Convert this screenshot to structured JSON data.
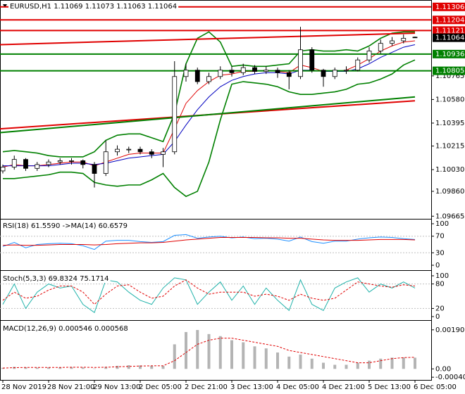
{
  "chart_data": [
    {
      "type": "candlestick",
      "title": "EURUSD,H1  1.11069 1.11073 1.11063 1.11064",
      "categories": [
        "28 Nov 2019",
        null,
        null,
        null,
        "28 Nov 21:00",
        null,
        null,
        null,
        "29 Nov 13:00",
        null,
        null,
        null,
        "2 Dec 05:00",
        null,
        null,
        null,
        "2 Dec 21:00",
        null,
        null,
        null,
        "3 Dec 13:00",
        null,
        null,
        null,
        "4 Dec 05:00",
        null,
        null,
        null,
        "4 Dec 21:00",
        null,
        null,
        null,
        "5 Dec 13:00",
        null,
        null,
        null,
        "6 Dec 05:00"
      ],
      "open": [
        1.1002,
        1.1005,
        1.1011,
        1.1004,
        1.1007,
        1.1009,
        1.101,
        1.101,
        1.1007,
        1.1,
        1.1017,
        1.1019,
        1.1019,
        1.1017,
        1.1015,
        1.1017,
        1.1076,
        1.1081,
        1.1072,
        1.1076,
        1.1081,
        1.1079,
        1.1083,
        1.108,
        1.1081,
        1.1079,
        1.1076,
        1.1097,
        1.1081,
        1.1076,
        1.1081,
        1.1081,
        1.1089,
        1.1096,
        1.1102,
        1.1104,
        1.11069
      ],
      "high": [
        1.1007,
        1.1014,
        1.1012,
        1.1009,
        1.1011,
        1.1012,
        1.1012,
        1.1011,
        1.1009,
        1.1026,
        1.1022,
        1.1021,
        1.1021,
        1.1019,
        1.102,
        1.1088,
        1.1086,
        1.1083,
        1.1079,
        1.1084,
        1.1084,
        1.1086,
        1.1085,
        1.1084,
        1.1083,
        1.1081,
        1.1115,
        1.1099,
        1.1082,
        1.1083,
        1.1084,
        1.1091,
        1.1099,
        1.1105,
        1.1107,
        1.1109,
        1.11073
      ],
      "low": [
        1.1,
        1.1003,
        1.1002,
        1.1002,
        1.1005,
        1.1007,
        1.1007,
        1.1004,
        1.0989,
        1.0998,
        1.1014,
        1.1016,
        1.1015,
        1.1012,
        1.1005,
        1.1015,
        1.1072,
        1.107,
        1.107,
        1.1074,
        1.1076,
        1.1077,
        1.1078,
        1.1078,
        1.1075,
        1.1066,
        1.1074,
        1.1079,
        1.1068,
        1.1074,
        1.1078,
        1.108,
        1.1087,
        1.1094,
        1.11,
        1.1102,
        1.11063
      ],
      "close": [
        1.1005,
        1.1011,
        1.1004,
        1.1007,
        1.1009,
        1.101,
        1.101,
        1.1007,
        1.1,
        1.1017,
        1.1019,
        1.1019,
        1.1017,
        1.1015,
        1.1017,
        1.1076,
        1.1081,
        1.1072,
        1.1076,
        1.1081,
        1.1079,
        1.1083,
        1.108,
        1.1081,
        1.1079,
        1.1076,
        1.1097,
        1.1081,
        1.1076,
        1.1081,
        1.1081,
        1.1089,
        1.1096,
        1.1102,
        1.1104,
        1.1106,
        1.11064
      ],
      "up_color": "#ffffff",
      "down_color": "#000000",
      "overlays": [
        {
          "color": "#008000",
          "values": [
            1.1017,
            1.1018,
            1.1017,
            1.1016,
            1.1014,
            1.1013,
            1.1013,
            1.1013,
            1.1017,
            1.1026,
            1.103,
            1.1031,
            1.1031,
            1.1028,
            1.1025,
            1.1047,
            1.1086,
            1.1106,
            1.1111,
            1.1103,
            1.1084,
            1.1085,
            1.1084,
            1.1084,
            1.1085,
            1.1086,
            1.1096,
            1.1097,
            1.1096,
            1.1096,
            1.1097,
            1.1096,
            1.11,
            1.1106,
            1.111,
            1.1111,
            1.1111
          ]
        },
        {
          "color": "#008000",
          "values": [
            1.0996,
            1.0996,
            1.0997,
            1.0998,
            1.0999,
            1.1001,
            1.1001,
            1.1,
            1.0993,
            1.0991,
            1.099,
            1.0991,
            1.0991,
            1.0995,
            1.1,
            1.0989,
            1.0982,
            1.0986,
            1.1009,
            1.1042,
            1.107,
            1.1072,
            1.1071,
            1.107,
            1.1068,
            1.1064,
            1.1062,
            1.1062,
            1.1063,
            1.1064,
            1.1066,
            1.107,
            1.1071,
            1.1074,
            1.1078,
            1.1085,
            1.1089
          ]
        },
        {
          "color": "#e00000",
          "values": [
            1.1005,
            1.1007,
            1.1006,
            1.1006,
            1.1007,
            1.1008,
            1.1009,
            1.1009,
            1.1006,
            1.1009,
            1.1012,
            1.1015,
            1.1016,
            1.1016,
            1.1016,
            1.1035,
            1.1055,
            1.1065,
            1.1072,
            1.1077,
            1.1078,
            1.108,
            1.108,
            1.1081,
            1.108,
            1.1079,
            1.1085,
            1.1083,
            1.108,
            1.108,
            1.1081,
            1.1085,
            1.109,
            1.1096,
            1.11,
            1.1103,
            1.1104
          ]
        },
        {
          "color": "#0000c0",
          "values": [
            1.1006,
            1.1006,
            1.1006,
            1.1006,
            1.1006,
            1.1007,
            1.1008,
            1.1008,
            1.1007,
            1.1008,
            1.101,
            1.1012,
            1.1013,
            1.1014,
            1.1015,
            1.1025,
            1.1038,
            1.105,
            1.106,
            1.1068,
            1.1073,
            1.1076,
            1.1078,
            1.1079,
            1.1079,
            1.1078,
            1.1081,
            1.1081,
            1.108,
            1.108,
            1.108,
            1.1082,
            1.1086,
            1.1091,
            1.1095,
            1.1099,
            1.1101
          ]
        }
      ],
      "trendlines": [
        {
          "color": "#e00000",
          "values": [
            1.1101,
            1.111
          ]
        },
        {
          "color": "#e00000",
          "values": [
            1.1035,
            1.1057
          ]
        },
        {
          "color": "#008000",
          "values": [
            1.1032,
            1.106
          ]
        }
      ],
      "levels": [
        {
          "value": 1.11306,
          "color": "#e00000"
        },
        {
          "value": 1.11204,
          "color": "#e00000"
        },
        {
          "value": 1.11121,
          "color": "#e00000"
        },
        {
          "value": 1.10936,
          "color": "#008000"
        },
        {
          "value": 1.10805,
          "color": "#008000"
        }
      ],
      "last": 1.11064,
      "ylim": [
        1.0965,
        1.1136
      ],
      "yticks": [
        1.09665,
        {
          "value": 1.0986,
          "label": "1.09860"
        },
        {
          "value": 1.1003,
          "label": "1.10030"
        },
        1.10215,
        1.10395,
        {
          "value": 1.1058,
          "label": "1.10580"
        },
        1.10765
      ]
    },
    {
      "type": "line",
      "title": "RSI(18) 61.5590  ->MA(14) 60.6579",
      "series": [
        {
          "color": "#1e90ff",
          "values": [
            45,
            55,
            42,
            50,
            52,
            53,
            52,
            47,
            38,
            58,
            60,
            60,
            57,
            55,
            57,
            72,
            74,
            65,
            68,
            70,
            66,
            68,
            64,
            65,
            63,
            58,
            68,
            57,
            53,
            58,
            58,
            63,
            66,
            68,
            67,
            64,
            62
          ]
        },
        {
          "color": "#e00000",
          "values": [
            48,
            49,
            48,
            48,
            49,
            50,
            50,
            50,
            49,
            50,
            52,
            53,
            54,
            54,
            55,
            58,
            61,
            63,
            65,
            67,
            67,
            67,
            67,
            66,
            66,
            65,
            65,
            63,
            61,
            60,
            60,
            60,
            61,
            62,
            62,
            62,
            61
          ]
        }
      ],
      "ylim": [
        0,
        100
      ],
      "yticks": [
        0,
        30,
        70,
        100
      ]
    },
    {
      "type": "line",
      "title": "Stoch(5,3,3) 69.8324 75.1714",
      "series": [
        {
          "color": "#20b2aa",
          "values": [
            30,
            80,
            20,
            60,
            80,
            70,
            75,
            30,
            10,
            90,
            85,
            60,
            40,
            30,
            70,
            95,
            90,
            30,
            60,
            85,
            40,
            75,
            30,
            70,
            40,
            15,
            90,
            30,
            15,
            70,
            85,
            95,
            60,
            80,
            70,
            85,
            70
          ]
        },
        {
          "color": "#e00000",
          "dash": true,
          "values": [
            40,
            60,
            45,
            50,
            65,
            75,
            75,
            60,
            30,
            55,
            75,
            78,
            60,
            45,
            50,
            75,
            90,
            70,
            55,
            60,
            60,
            60,
            50,
            55,
            50,
            40,
            55,
            45,
            40,
            45,
            65,
            85,
            80,
            75,
            72,
            78,
            75
          ]
        }
      ],
      "ylim": [
        0,
        100
      ],
      "yticks": [
        0,
        20,
        80,
        100
      ]
    },
    {
      "type": "macd",
      "title": "MACD(12,26,9) 0.000546 0.000568",
      "series": [
        {
          "color": "#b4b4b4",
          "values": [
            5e-05,
            0.0001,
            8e-05,
            6e-05,
            7e-05,
            8e-05,
            9e-05,
            7e-05,
            2e-05,
            0.0001,
            0.00015,
            0.00018,
            0.00017,
            0.00015,
            0.00014,
            0.0012,
            0.0018,
            0.0019,
            0.0017,
            0.0016,
            0.0014,
            0.0013,
            0.0011,
            0.001,
            0.0008,
            0.0006,
            0.0007,
            0.0005,
            0.0003,
            0.0002,
            0.0002,
            0.0003,
            0.0004,
            0.0005,
            0.00055,
            0.00056,
            0.000546
          ]
        },
        {
          "color": "#e00000",
          "dash": true,
          "values": [
            4e-05,
            6e-05,
            7e-05,
            7e-05,
            7e-05,
            7e-05,
            8e-05,
            8e-05,
            7e-05,
            8e-05,
            0.0001,
            0.00012,
            0.00014,
            0.00015,
            0.00015,
            0.0004,
            0.0008,
            0.0012,
            0.0014,
            0.0015,
            0.0015,
            0.0014,
            0.0013,
            0.0012,
            0.0011,
            0.0009,
            0.0008,
            0.0007,
            0.0006,
            0.0005,
            0.0004,
            0.0003,
            0.0003,
            0.0004,
            0.0005,
            0.00055,
            0.000568
          ]
        }
      ],
      "ylim": [
        -0.00054,
        0.00221
      ],
      "yticks": [
        -0.000407,
        {
          "value": 0,
          "label": "0.00"
        },
        0.001908
      ]
    }
  ]
}
